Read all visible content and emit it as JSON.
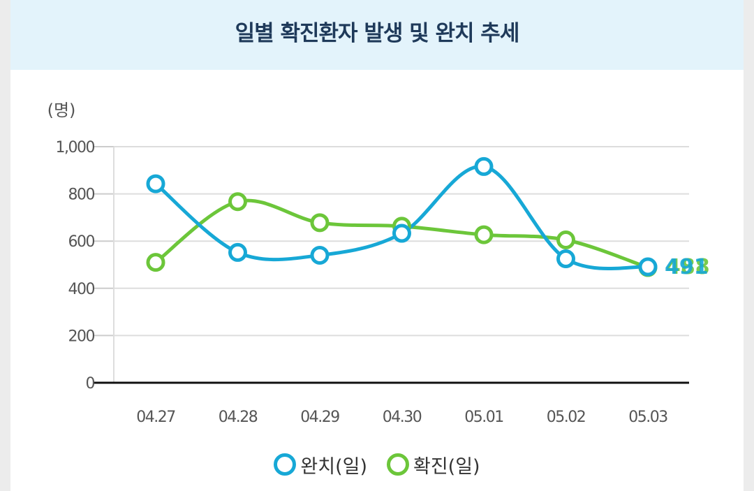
{
  "title": "일별 확진환자 발생 및 완치 추세",
  "chart_data": {
    "type": "line",
    "unit_label": "(명)",
    "categories": [
      "04.27",
      "04.28",
      "04.29",
      "04.30",
      "05.01",
      "05.02",
      "05.03"
    ],
    "ylim": [
      0,
      1000
    ],
    "yticks": [
      0,
      200,
      400,
      600,
      800,
      1000
    ],
    "ytick_labels": [
      "0",
      "200",
      "400",
      "600",
      "800",
      "1,000"
    ],
    "series": [
      {
        "name": "완치(일)",
        "color": "#17a8d6",
        "values": [
          843,
          552,
          540,
          633,
          916,
          525,
          491
        ]
      },
      {
        "name": "확진(일)",
        "color": "#6cc63a",
        "values": [
          510,
          767,
          678,
          663,
          627,
          605,
          488
        ]
      }
    ],
    "end_labels": [
      "491",
      "488"
    ]
  },
  "legend": [
    {
      "label": "완치(일)",
      "color": "#17a8d6"
    },
    {
      "label": "확진(일)",
      "color": "#6cc63a"
    }
  ]
}
